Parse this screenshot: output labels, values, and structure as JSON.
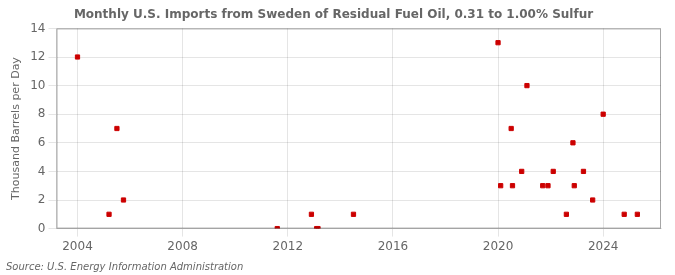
{
  "chart_data": {
    "type": "scatter",
    "title": "Monthly U.S. Imports from Sweden of Residual Fuel Oil, 0.31 to 1.00% Sulfur",
    "ylabel": "Thousand Barrels per Day",
    "annotation": "Source: U.S. Energy Information Administration",
    "x": [
      2004.0,
      2005.2,
      2005.5,
      2005.75,
      2011.6,
      2012.9,
      2013.1,
      2013.15,
      2014.5,
      2020.0,
      2020.1,
      2020.5,
      2020.55,
      2020.9,
      2021.1,
      2021.7,
      2021.9,
      2022.1,
      2022.6,
      2022.85,
      2022.9,
      2023.25,
      2023.6,
      2024.0,
      2024.8,
      2025.3
    ],
    "values": [
      12,
      1,
      7,
      2,
      0,
      1,
      0,
      0,
      1,
      13,
      3,
      7,
      3,
      4,
      10,
      3,
      3,
      4,
      1,
      6,
      3,
      4,
      2,
      8,
      1,
      1
    ],
    "color": "#cc0000",
    "marker": "square",
    "xlim": [
      2003.2,
      2026.2
    ],
    "xticks": [
      2004,
      2008,
      2012,
      2016,
      2020,
      2024
    ],
    "ylim": [
      0,
      14
    ],
    "yticks": [
      0,
      2,
      4,
      6,
      8,
      10,
      12,
      14
    ],
    "grid": true
  }
}
